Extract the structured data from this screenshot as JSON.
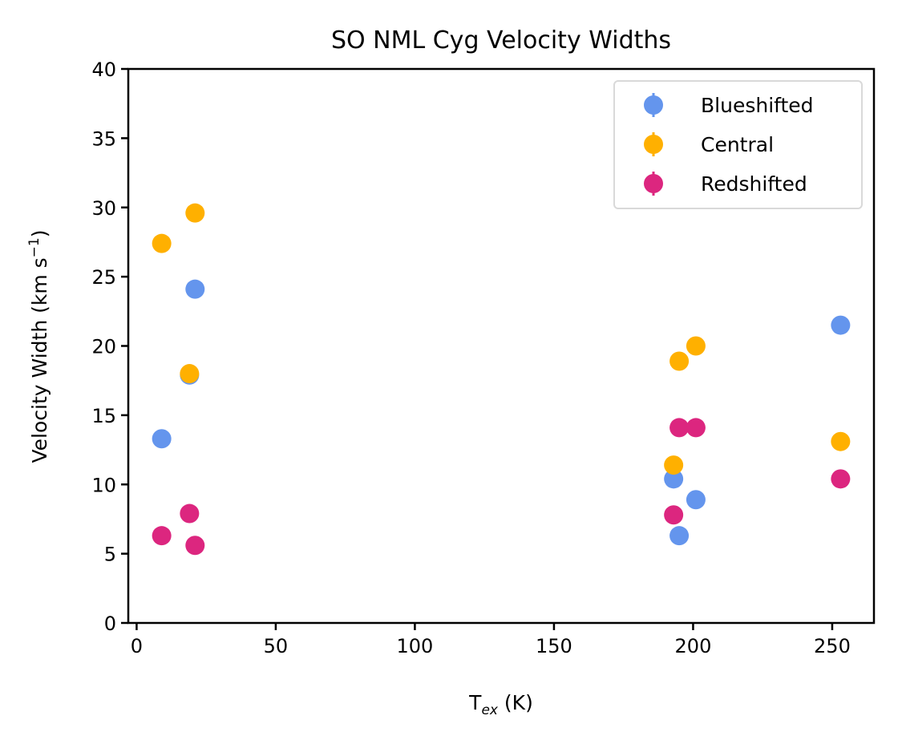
{
  "chart_data": {
    "type": "scatter",
    "title": "SO NML Cyg Velocity Widths",
    "xlabel": {
      "base": "T",
      "subscript": "ex",
      "suffix": " (K)"
    },
    "ylabel": {
      "prefix": "Velocity Width (km s",
      "superscript": "−1",
      "suffix": ")"
    },
    "xlim": [
      -3,
      265
    ],
    "ylim": [
      0,
      40
    ],
    "xticks": [
      0,
      50,
      100,
      150,
      200,
      250
    ],
    "yticks": [
      0,
      5,
      10,
      15,
      20,
      25,
      30,
      35,
      40
    ],
    "grid": false,
    "legend_position": "top-right",
    "series": [
      {
        "name": "Blueshifted",
        "color": "#6495ED",
        "points": [
          {
            "x": 9,
            "y": 13.3
          },
          {
            "x": 19,
            "y": 17.9
          },
          {
            "x": 21,
            "y": 24.1
          },
          {
            "x": 193,
            "y": 10.4
          },
          {
            "x": 195,
            "y": 6.3
          },
          {
            "x": 201,
            "y": 8.9
          },
          {
            "x": 253,
            "y": 21.5
          }
        ]
      },
      {
        "name": "Central",
        "color": "#FFB000",
        "points": [
          {
            "x": 9,
            "y": 27.4
          },
          {
            "x": 19,
            "y": 18.0
          },
          {
            "x": 21,
            "y": 29.6
          },
          {
            "x": 193,
            "y": 11.4
          },
          {
            "x": 195,
            "y": 18.9
          },
          {
            "x": 201,
            "y": 20.0
          },
          {
            "x": 253,
            "y": 13.1
          }
        ]
      },
      {
        "name": "Redshifted",
        "color": "#DC267F",
        "points": [
          {
            "x": 9,
            "y": 6.3
          },
          {
            "x": 19,
            "y": 7.9
          },
          {
            "x": 21,
            "y": 5.6
          },
          {
            "x": 193,
            "y": 7.8
          },
          {
            "x": 195,
            "y": 14.1
          },
          {
            "x": 201,
            "y": 14.1
          },
          {
            "x": 253,
            "y": 10.4
          }
        ]
      }
    ]
  }
}
